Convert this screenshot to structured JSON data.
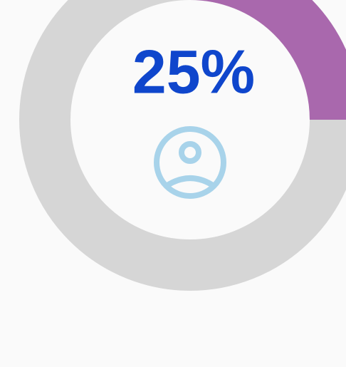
{
  "chart_data": {
    "type": "donut",
    "values": [
      25
    ],
    "value_labels": [
      "25%"
    ],
    "ylim": [
      0,
      100
    ],
    "color": "#a968ad",
    "track_color": "#d6d6d6",
    "label_color": "#0f46cc",
    "icon_color": "#a8d3ea"
  }
}
